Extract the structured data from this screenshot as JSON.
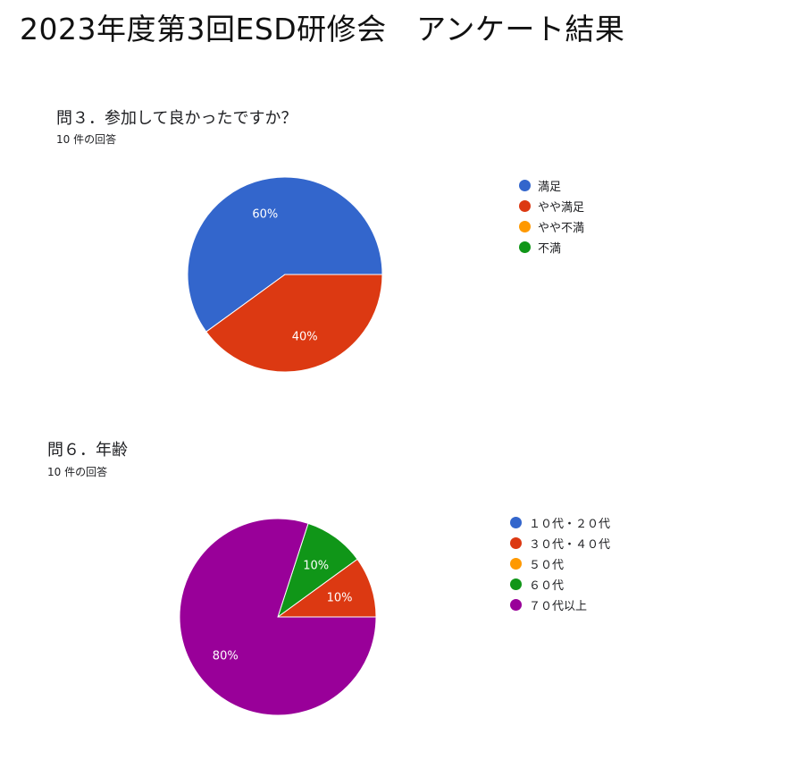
{
  "page": {
    "title": "2023年度第3回ESD研修会　アンケート結果"
  },
  "chart_data": [
    {
      "type": "pie",
      "title": "問３．参加して良かったですか？",
      "subtitle": "10 件の回答",
      "categories": [
        "満足",
        "やや満足",
        "やや不満",
        "不満"
      ],
      "values": [
        60,
        40,
        0,
        0
      ],
      "value_labels": [
        "60%",
        "40%",
        "",
        ""
      ],
      "colors": [
        "#3366cc",
        "#dc3912",
        "#ff9900",
        "#109618"
      ],
      "legend": "right"
    },
    {
      "type": "pie",
      "title": "問６．年齢",
      "subtitle": "10 件の回答",
      "categories": [
        "１０代・２０代",
        "３０代・４０代",
        "５０代",
        "６０代",
        "７０代以上"
      ],
      "values": [
        0,
        10,
        0,
        10,
        80
      ],
      "value_labels": [
        "",
        "10%",
        "",
        "10%",
        "80%"
      ],
      "colors": [
        "#3366cc",
        "#dc3912",
        "#ff9900",
        "#109618",
        "#990099"
      ],
      "legend": "right"
    }
  ]
}
